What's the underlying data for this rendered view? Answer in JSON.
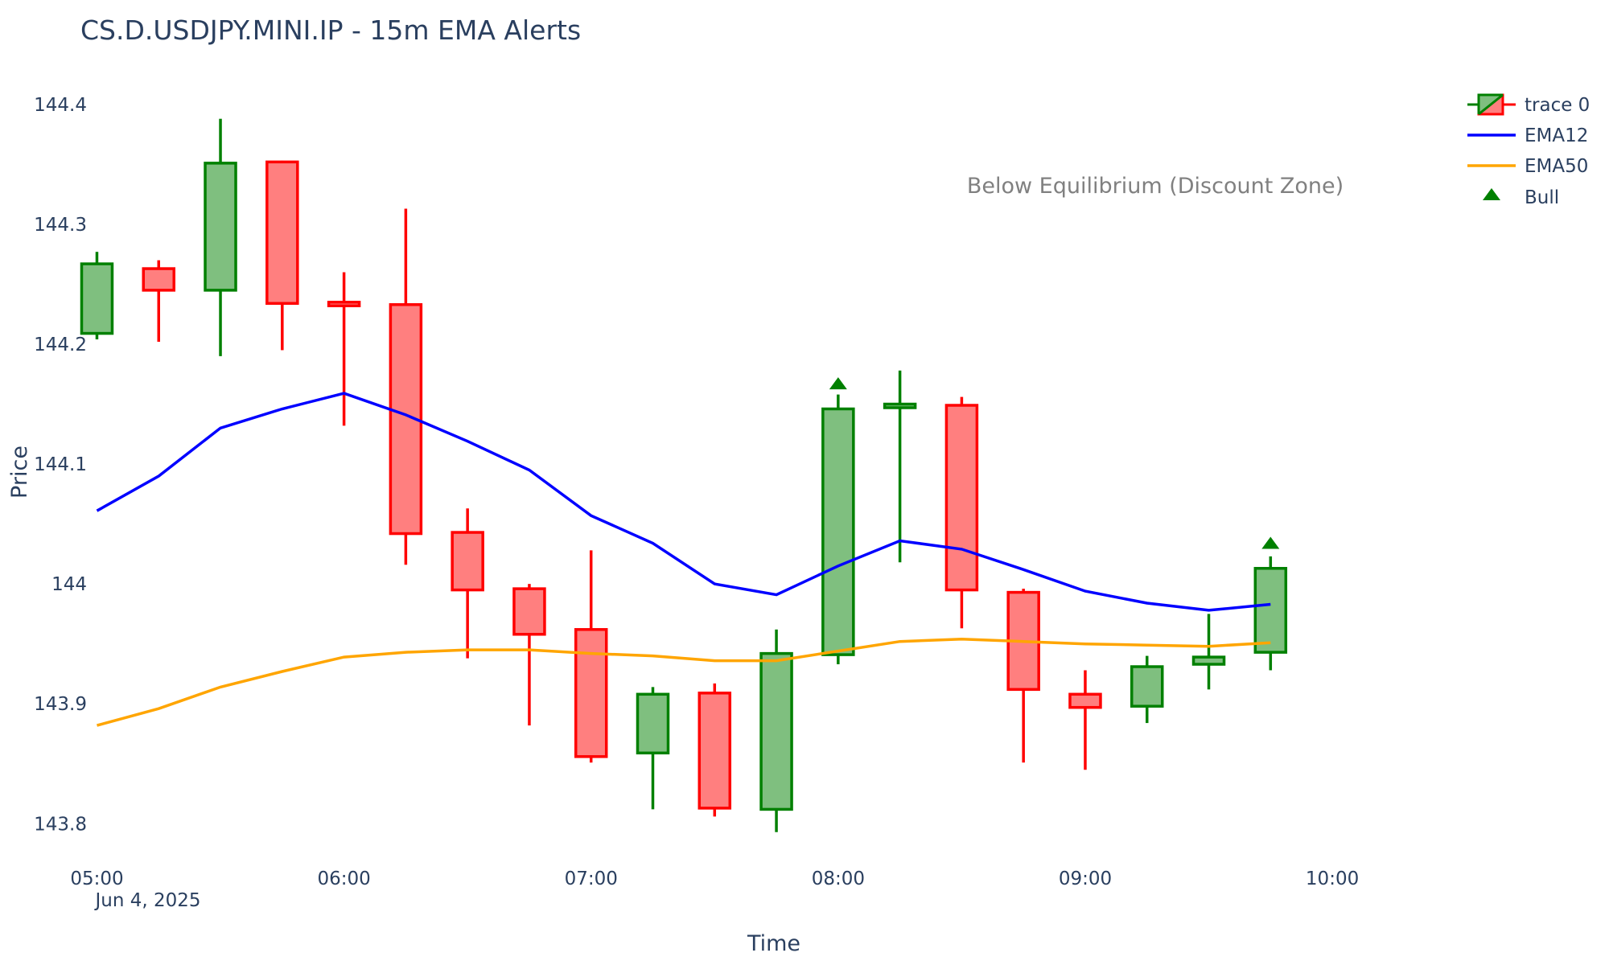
{
  "chart_data": {
    "type": "candlestick",
    "title": "CS.D.USDJPY.MINI.IP - 15m EMA Alerts",
    "xlabel": "Time",
    "ylabel": "Price",
    "date_label": "Jun 4, 2025",
    "x_ticks": [
      "05:00",
      "06:00",
      "07:00",
      "08:00",
      "09:00",
      "10:00"
    ],
    "y_ticks": [
      "143.8",
      "143.9",
      "144",
      "144.1",
      "144.2",
      "144.3",
      "144.4"
    ],
    "xlim": [
      "04:56",
      "10:33"
    ],
    "ylim": [
      143.766,
      144.42
    ],
    "annotation": "Below Equilibrium (Discount Zone)",
    "colors": {
      "up": "#008000",
      "up_fill": "#7fbf7f",
      "down": "#ff0000",
      "down_fill": "#ff7f7f",
      "ema12": "#0000ff",
      "ema50": "#ffa500",
      "bull": "#008000"
    },
    "legend": [
      "trace 0",
      "EMA12",
      "EMA50",
      "Bull"
    ],
    "candles": [
      {
        "t": "05:00",
        "o": 144.209,
        "h": 144.277,
        "l": 144.204,
        "c": 144.267
      },
      {
        "t": "05:15",
        "o": 144.263,
        "h": 144.27,
        "l": 144.202,
        "c": 144.245
      },
      {
        "t": "05:30",
        "o": 144.245,
        "h": 144.388,
        "l": 144.19,
        "c": 144.351
      },
      {
        "t": "05:45",
        "o": 144.352,
        "h": 144.353,
        "l": 144.195,
        "c": 144.234
      },
      {
        "t": "06:00",
        "o": 144.235,
        "h": 144.26,
        "l": 144.132,
        "c": 144.232
      },
      {
        "t": "06:15",
        "o": 144.233,
        "h": 144.313,
        "l": 144.016,
        "c": 144.042
      },
      {
        "t": "06:30",
        "o": 144.043,
        "h": 144.063,
        "l": 143.938,
        "c": 143.995
      },
      {
        "t": "06:45",
        "o": 143.996,
        "h": 144.0,
        "l": 143.882,
        "c": 143.958
      },
      {
        "t": "07:00",
        "o": 143.962,
        "h": 144.028,
        "l": 143.851,
        "c": 143.856
      },
      {
        "t": "07:15",
        "o": 143.859,
        "h": 143.914,
        "l": 143.812,
        "c": 143.908
      },
      {
        "t": "07:30",
        "o": 143.909,
        "h": 143.917,
        "l": 143.806,
        "c": 143.813
      },
      {
        "t": "07:45",
        "o": 143.812,
        "h": 143.962,
        "l": 143.793,
        "c": 143.942
      },
      {
        "t": "08:00",
        "o": 143.941,
        "h": 144.158,
        "l": 143.933,
        "c": 144.146
      },
      {
        "t": "08:15",
        "o": 144.147,
        "h": 144.178,
        "l": 144.018,
        "c": 144.15
      },
      {
        "t": "08:30",
        "o": 144.149,
        "h": 144.156,
        "l": 143.963,
        "c": 143.995
      },
      {
        "t": "08:45",
        "o": 143.993,
        "h": 143.996,
        "l": 143.851,
        "c": 143.912
      },
      {
        "t": "09:00",
        "o": 143.908,
        "h": 143.928,
        "l": 143.845,
        "c": 143.897
      },
      {
        "t": "09:15",
        "o": 143.898,
        "h": 143.94,
        "l": 143.884,
        "c": 143.931
      },
      {
        "t": "09:30",
        "o": 143.933,
        "h": 143.975,
        "l": 143.912,
        "c": 143.939
      },
      {
        "t": "09:45",
        "o": 143.943,
        "h": 144.023,
        "l": 143.928,
        "c": 144.013
      }
    ],
    "ema12": [
      144.061,
      144.09,
      144.13,
      144.146,
      144.159,
      144.141,
      144.119,
      144.095,
      144.057,
      144.034,
      144.0,
      143.991,
      144.015,
      144.036,
      144.029,
      144.012,
      143.994,
      143.984,
      143.978,
      143.983
    ],
    "ema50": [
      143.882,
      143.896,
      143.914,
      143.927,
      143.939,
      143.943,
      143.945,
      143.945,
      143.942,
      143.94,
      143.936,
      143.936,
      143.944,
      143.952,
      143.954,
      143.952,
      143.95,
      143.949,
      143.948,
      143.951
    ],
    "bull_signals": [
      {
        "t": "08:00",
        "y": 144.167
      },
      {
        "t": "09:45",
        "y": 144.034
      }
    ]
  }
}
